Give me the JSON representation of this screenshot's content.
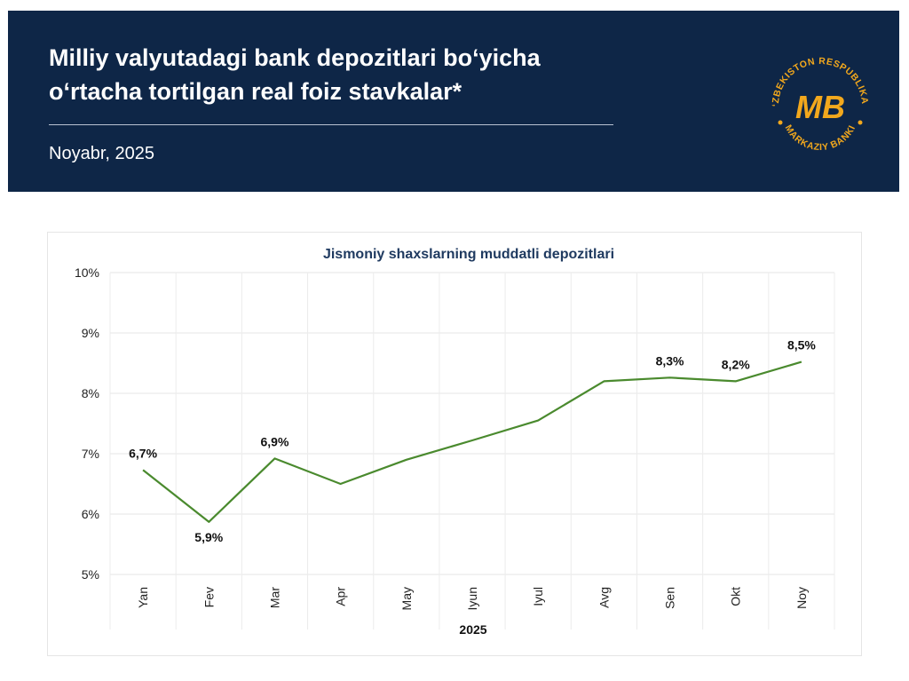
{
  "header": {
    "title_line1": "Milliy valyutadagi bank depozitlari bo‘yicha",
    "title_line2": "o‘rtacha tortilgan real foiz stavkalar*",
    "subtitle": "Noyabr, 2025",
    "background_color": "#0e2647"
  },
  "logo": {
    "top_text": "O‘ZBEKISTON RESPUBLIKASI",
    "bottom_text": "MARKAZIY BANKI",
    "monogram": "MB",
    "color": "#f2a81d"
  },
  "chart_data": {
    "type": "line",
    "title": "Jismoniy shaxslarning muddatli depozitlari",
    "xlabel": "2025",
    "ylabel": "",
    "categories": [
      "Yan",
      "Fev",
      "Mar",
      "Apr",
      "May",
      "Iyun",
      "Iyul",
      "Avg",
      "Sen",
      "Okt",
      "Noy"
    ],
    "values": [
      6.73,
      5.87,
      6.92,
      6.5,
      6.9,
      7.22,
      7.55,
      8.2,
      8.26,
      8.2,
      8.52
    ],
    "data_labels": [
      "6,7%",
      "5,9%",
      "6,9%",
      "",
      "",
      "",
      "",
      "",
      "8,3%",
      "8,2%",
      "8,5%"
    ],
    "label_positions": [
      "above",
      "below",
      "above",
      "",
      "",
      "",
      "",
      "",
      "above",
      "above",
      "above"
    ],
    "ylim": [
      5,
      10
    ],
    "yticks": [
      5,
      6,
      7,
      8,
      9,
      10
    ],
    "ytick_labels": [
      "5%",
      "6%",
      "7%",
      "8%",
      "9%",
      "10%"
    ],
    "grid": true,
    "line_color": "#4a8a2e"
  }
}
